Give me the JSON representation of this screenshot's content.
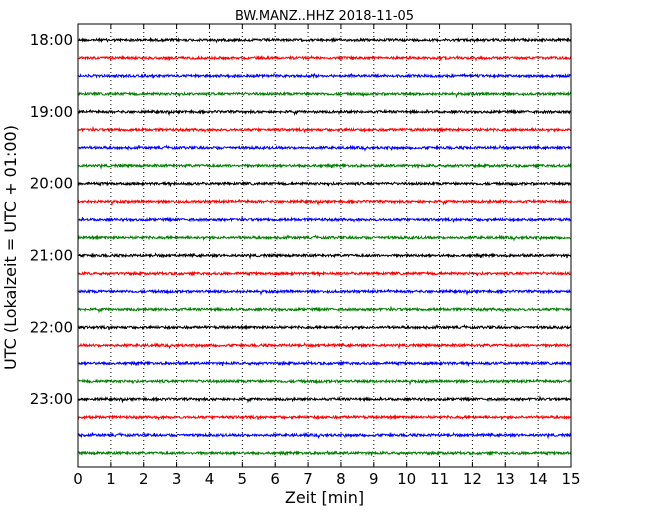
{
  "chart_data": {
    "type": "line",
    "title": "BW.MANZ..HHZ 2018-11-05",
    "xlabel": "Zeit  [min]",
    "ylabel": "UTC (Lokalzeit = UTC + 01:00)",
    "xlim": [
      0,
      15
    ],
    "x_ticks": [
      "0",
      "1",
      "2",
      "3",
      "4",
      "5",
      "6",
      "7",
      "8",
      "9",
      "10",
      "11",
      "12",
      "13",
      "14",
      "15"
    ],
    "y_ticks": [
      "18:00",
      "19:00",
      "20:00",
      "21:00",
      "22:00",
      "23:00"
    ],
    "rows_per_hour": 4,
    "row_start_times": [
      "18:00",
      "18:15",
      "18:30",
      "18:45",
      "19:00",
      "19:15",
      "19:30",
      "19:45",
      "20:00",
      "20:15",
      "20:30",
      "20:45",
      "21:00",
      "21:15",
      "21:30",
      "21:45",
      "22:00",
      "22:15",
      "22:30",
      "22:45",
      "23:00",
      "23:15",
      "23:30",
      "23:45"
    ],
    "trace_colors": [
      "#000000",
      "#ff0000",
      "#0000ff",
      "#008000"
    ],
    "x_grid": "dotted vertical lines at each minute",
    "frame_color": "#000000",
    "background": "#ffffff"
  }
}
